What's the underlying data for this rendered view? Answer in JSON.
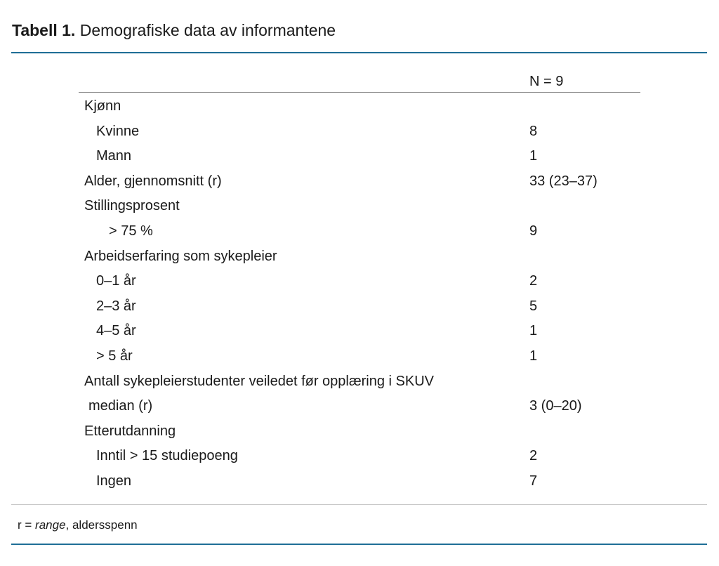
{
  "title": {
    "label": "Tabell 1.",
    "text": "Demografiske data av informantene"
  },
  "table": {
    "header_value": "N = 9",
    "rows": [
      {
        "label": "Kjønn",
        "value": "",
        "indent": "i0"
      },
      {
        "label": "Kvinne",
        "value": "8",
        "indent": "i1"
      },
      {
        "label": "Mann",
        "value": "1",
        "indent": "i1"
      },
      {
        "label": "Alder, gjennomsnitt (r)",
        "value": "33 (23–37)",
        "indent": "i0"
      },
      {
        "label": "Stillingsprosent",
        "value": "",
        "indent": "i0"
      },
      {
        "label": "> 75 %",
        "value": "9",
        "indent": "i2"
      },
      {
        "label": "Arbeidserfaring som sykepleier",
        "value": "",
        "indent": "i0"
      },
      {
        "label": "0–1 år",
        "value": "2",
        "indent": "i1"
      },
      {
        "label": "2–3 år",
        "value": "5",
        "indent": "i1"
      },
      {
        "label": "4–5 år",
        "value": "1",
        "indent": "i1"
      },
      {
        "label": "> 5 år",
        "value": "1",
        "indent": "i1"
      },
      {
        "label": "Antall sykepleierstudenter veiledet før opplæring i SKUV",
        "value": "",
        "indent": "i0"
      },
      {
        "label": "median (r)",
        "value": "3 (0–20)",
        "indent": "im"
      },
      {
        "label": "Etterutdanning",
        "value": "",
        "indent": "i0"
      },
      {
        "label": "Inntil > 15 studiepoeng",
        "value": "2",
        "indent": "i1"
      },
      {
        "label": "Ingen",
        "value": "7",
        "indent": "i1"
      }
    ]
  },
  "footnote": {
    "prefix": "r = ",
    "term": "range",
    "suffix": ", aldersspenn"
  },
  "colors": {
    "accent_rule": "#1f6e96",
    "divider": "#c8c8c8"
  }
}
